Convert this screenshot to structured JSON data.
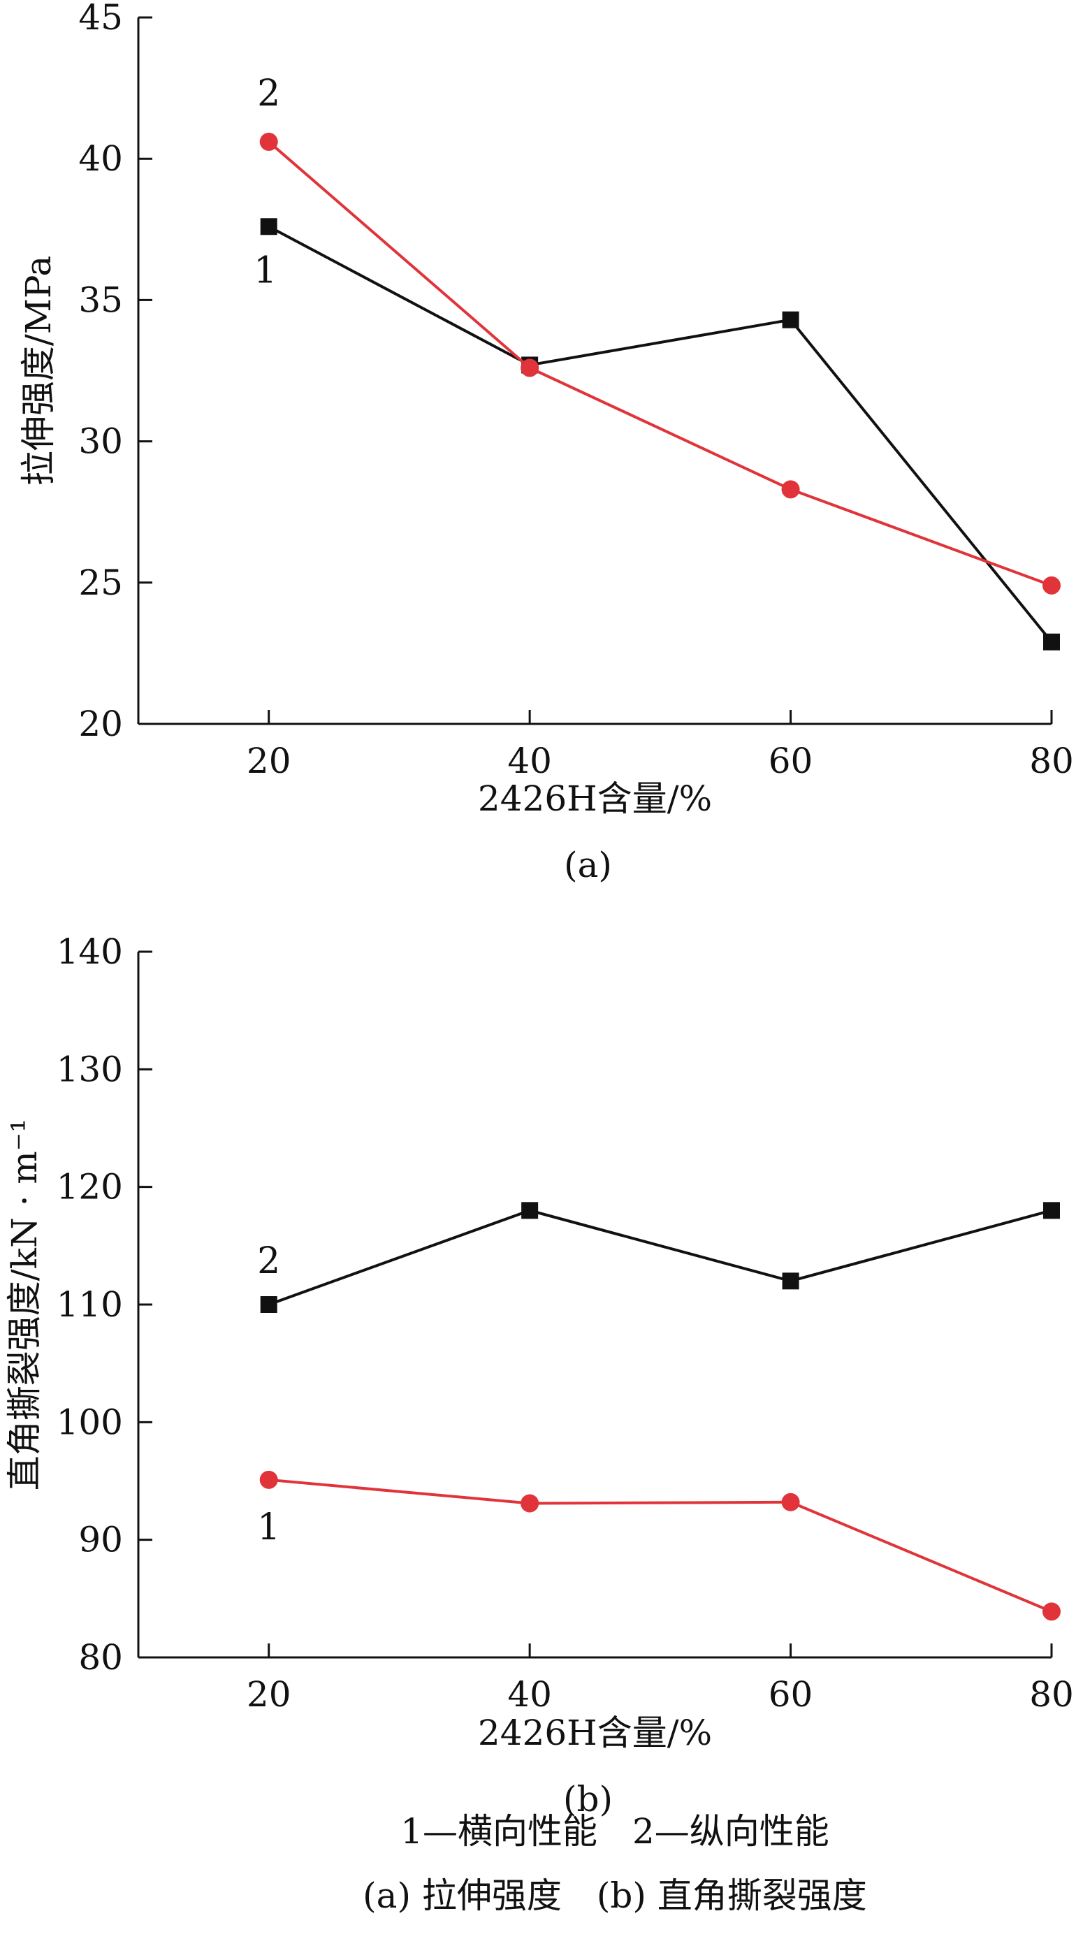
{
  "chart_data": [
    {
      "type": "line",
      "panel_label": "(a)",
      "xlabel": "2426H含量/%",
      "ylabel": "拉伸强度/MPa",
      "x": [
        20,
        40,
        60,
        80
      ],
      "x_ticks": [
        "20",
        "40",
        "60",
        "80"
      ],
      "xlim": [
        10,
        80
      ],
      "ylim": [
        20,
        45
      ],
      "y_ticks": [
        "20",
        "25",
        "30",
        "35",
        "40",
        "45"
      ],
      "grid": false,
      "series": [
        {
          "name": "1",
          "color": "#111111",
          "marker": "square",
          "values": [
            37.6,
            32.7,
            34.3,
            22.9
          ]
        },
        {
          "name": "2",
          "color": "#e0343a",
          "marker": "circle",
          "values": [
            40.6,
            32.6,
            28.3,
            24.9
          ]
        }
      ]
    },
    {
      "type": "line",
      "panel_label": "(b)",
      "xlabel": "2426H含量/%",
      "ylabel": "直角撕裂强度/kN · m⁻¹",
      "x": [
        20,
        40,
        60,
        80
      ],
      "x_ticks": [
        "20",
        "40",
        "60",
        "80"
      ],
      "xlim": [
        10,
        80
      ],
      "ylim": [
        80,
        140
      ],
      "y_ticks": [
        "80",
        "90",
        "100",
        "110",
        "120",
        "130",
        "140"
      ],
      "grid": false,
      "series": [
        {
          "name": "2",
          "color": "#111111",
          "marker": "square",
          "values": [
            110,
            118,
            112,
            118
          ]
        },
        {
          "name": "1",
          "color": "#e0343a",
          "marker": "circle",
          "values": [
            95.1,
            93.1,
            93.2,
            83.9
          ]
        }
      ]
    }
  ],
  "legend_caption": "1—横向性能　2—纵向性能",
  "panel_caption": "(a) 拉伸强度　(b) 直角撕裂强度"
}
